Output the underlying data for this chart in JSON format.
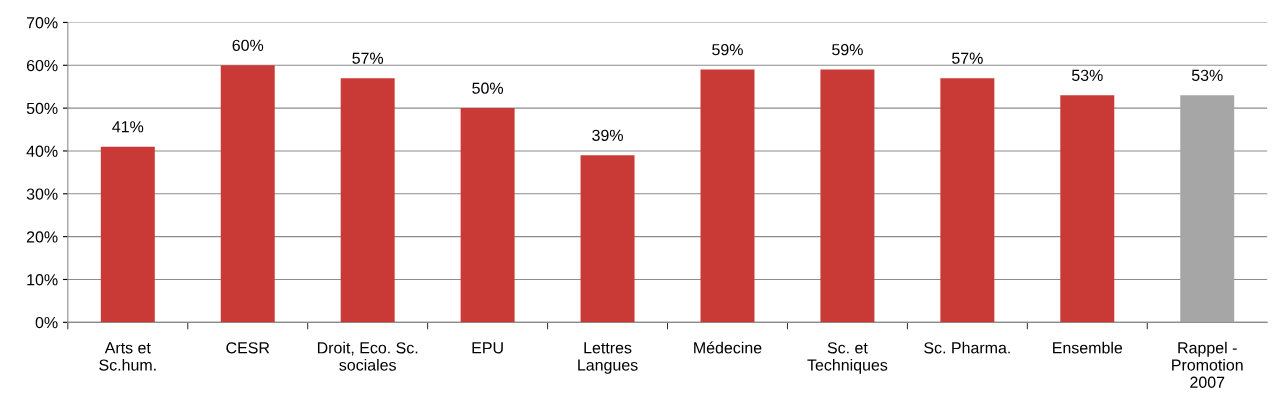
{
  "chart_data": {
    "type": "bar",
    "categories": [
      "Arts et\nSc.hum.",
      "CESR",
      "Droit, Eco. Sc.\nsociales",
      "EPU",
      "Lettres\nLangues",
      "Médecine",
      "Sc. et\nTechniques",
      "Sc. Pharma.",
      "Ensemble",
      "Rappel -\nPromotion\n2007"
    ],
    "values": [
      41,
      60,
      57,
      50,
      39,
      59,
      59,
      57,
      53,
      53
    ],
    "value_labels": [
      "41%",
      "60%",
      "57%",
      "50%",
      "39%",
      "59%",
      "59%",
      "57%",
      "53%",
      "53%"
    ],
    "colors": [
      "#c93a36",
      "#c93a36",
      "#c93a36",
      "#c93a36",
      "#c93a36",
      "#c93a36",
      "#c93a36",
      "#c93a36",
      "#c93a36",
      "#a6a6a6"
    ],
    "ylim": [
      0,
      70
    ],
    "yticks": [
      {
        "value": 0,
        "label": "0%"
      },
      {
        "value": 10,
        "label": "10%"
      },
      {
        "value": 20,
        "label": "20%"
      },
      {
        "value": 30,
        "label": "30%"
      },
      {
        "value": 40,
        "label": "40%"
      },
      {
        "value": 50,
        "label": "50%"
      },
      {
        "value": 60,
        "label": "60%"
      },
      {
        "value": 70,
        "label": "70%"
      }
    ],
    "grid": "y",
    "legend": false
  }
}
